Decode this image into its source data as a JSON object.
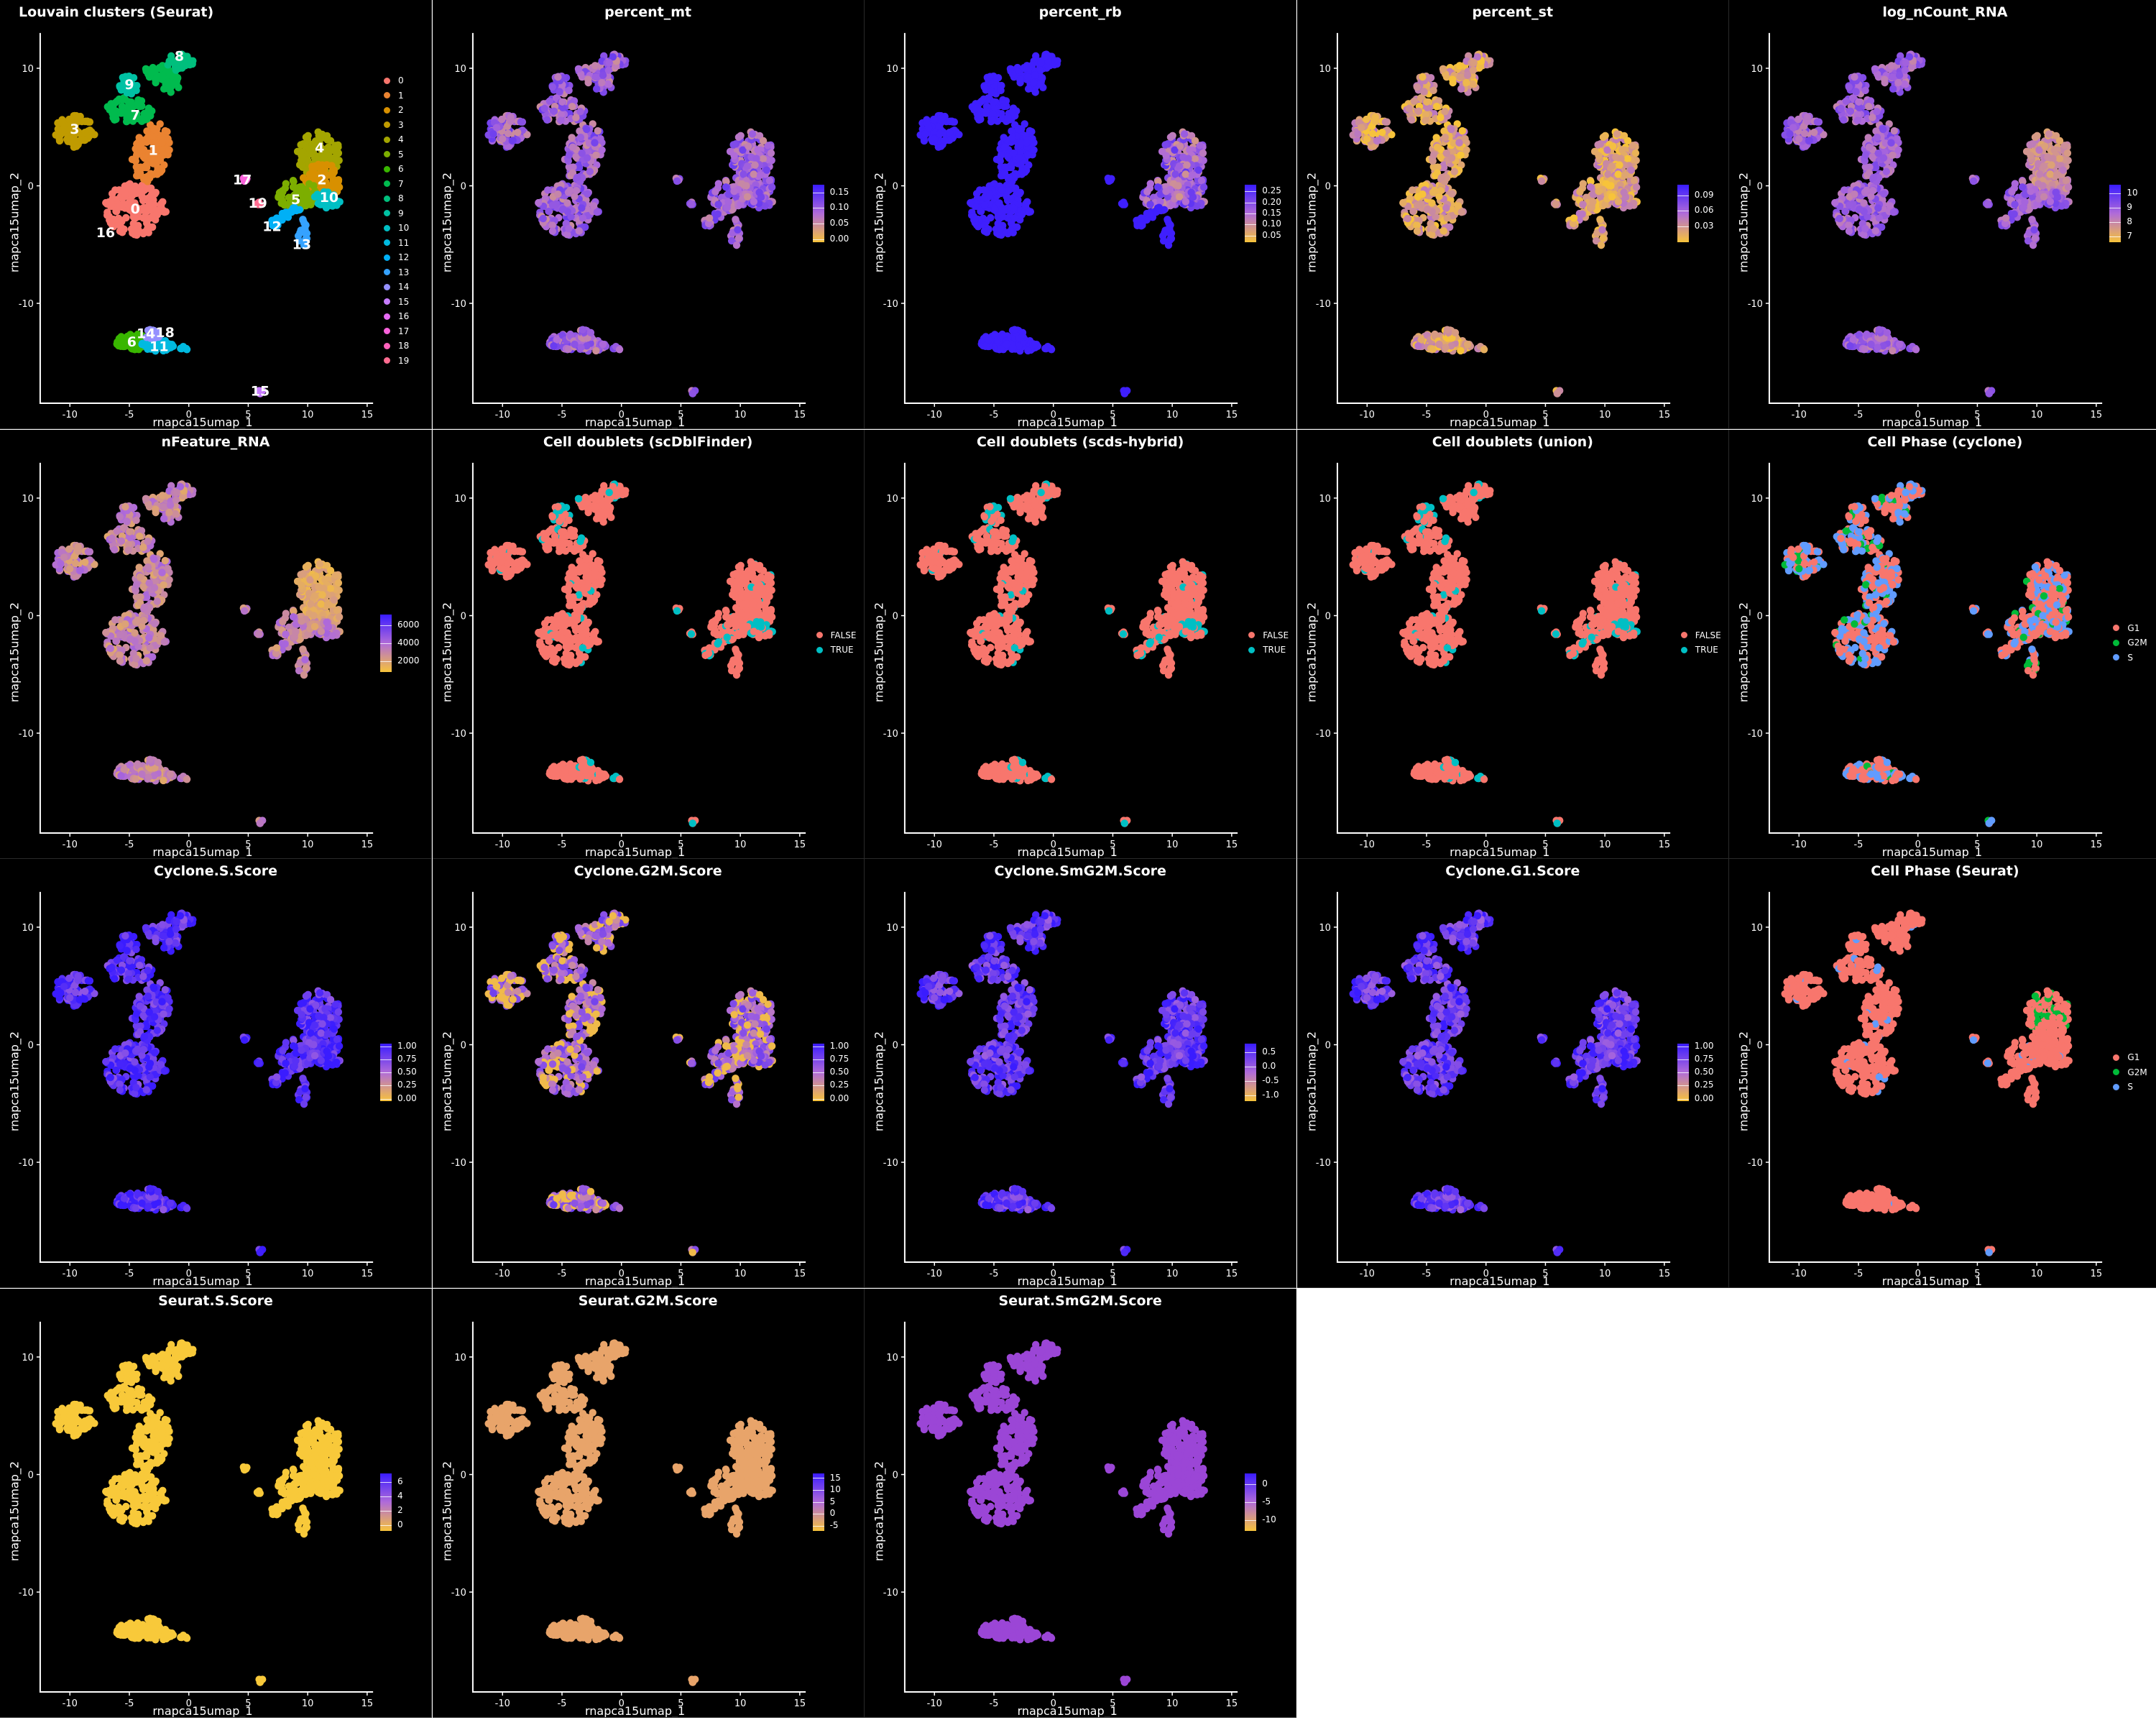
{
  "axes": {
    "xlabel": "rnapca15umap_1",
    "ylabel": "rnapca15umap_2",
    "xlim": [
      -12.5,
      15.5
    ],
    "ylim": [
      -18.5,
      13.0
    ],
    "xticks": [
      -10,
      -5,
      0,
      5,
      10,
      15
    ],
    "yticks": [
      10,
      0,
      -10
    ],
    "xtick_labels": [
      "-10",
      "-5",
      "0",
      "5",
      "10",
      "15"
    ],
    "ytick_labels": [
      "10",
      "0",
      "-10"
    ]
  },
  "colors": {
    "low": "#f7c33a",
    "mid": "#b06bd9",
    "high": "#3a1cff",
    "false": "#f8766d",
    "true": "#00bfc4",
    "g1": "#f8766d",
    "g2m": "#00ba38",
    "s": "#619cff"
  },
  "chart_data": [
    {
      "type": "scatter",
      "title": "Louvain clusters (Seurat)",
      "mode": "clusters",
      "legend": [
        "0",
        "1",
        "2",
        "3",
        "4",
        "5",
        "6",
        "7",
        "8",
        "9",
        "10",
        "11",
        "12",
        "13",
        "14",
        "15",
        "16",
        "17",
        "18",
        "19"
      ],
      "legend_colors": [
        "#f8766d",
        "#ea8331",
        "#d89000",
        "#c09b00",
        "#a3a500",
        "#7cae00",
        "#39b600",
        "#00bb4e",
        "#00bf7d",
        "#00c1a3",
        "#00bfc4",
        "#00bae0",
        "#00b0f6",
        "#35a2ff",
        "#9590ff",
        "#c77cff",
        "#e76bf3",
        "#fa62db",
        "#ff62bc",
        "#ff6c91"
      ],
      "labels": [
        {
          "text": "0",
          "x": -4.5,
          "y": -2.0
        },
        {
          "text": "1",
          "x": -3.0,
          "y": 3.0
        },
        {
          "text": "2",
          "x": 11.2,
          "y": 0.5
        },
        {
          "text": "3",
          "x": -9.6,
          "y": 4.8
        },
        {
          "text": "4",
          "x": 11.0,
          "y": 3.2
        },
        {
          "text": "5",
          "x": 9.0,
          "y": -1.2
        },
        {
          "text": "6",
          "x": -4.8,
          "y": -13.3
        },
        {
          "text": "7",
          "x": -4.5,
          "y": 6.0
        },
        {
          "text": "8",
          "x": -0.8,
          "y": 11.0
        },
        {
          "text": "9",
          "x": -5.0,
          "y": 8.6
        },
        {
          "text": "10",
          "x": 11.8,
          "y": -1.0
        },
        {
          "text": "11",
          "x": -2.5,
          "y": -13.7
        },
        {
          "text": "12",
          "x": 7.0,
          "y": -3.5
        },
        {
          "text": "13",
          "x": 9.5,
          "y": -5.0
        },
        {
          "text": "14",
          "x": -3.6,
          "y": -12.6
        },
        {
          "text": "15",
          "x": 6.0,
          "y": -17.5
        },
        {
          "text": "16",
          "x": -7.0,
          "y": -4.0
        },
        {
          "text": "17",
          "x": 4.5,
          "y": 0.5
        },
        {
          "text": "18",
          "x": -2.0,
          "y": -12.5
        },
        {
          "text": "19",
          "x": 5.8,
          "y": -1.5
        }
      ]
    },
    {
      "type": "scatter",
      "title": "percent_mt",
      "mode": "gradient",
      "base": 0.55,
      "cbar_ticks": [
        "0.15",
        "0.10",
        "0.05",
        "0.00"
      ],
      "cbar_values": [
        0.15,
        0.1,
        0.05,
        0.0
      ],
      "cbar_range": [
        -0.01,
        0.175
      ]
    },
    {
      "type": "scatter",
      "title": "percent_rb",
      "mode": "gradient",
      "base": 0.62,
      "special": "rb",
      "cbar_ticks": [
        "0.25",
        "0.20",
        "0.15",
        "0.10",
        "0.05"
      ],
      "cbar_values": [
        0.25,
        0.2,
        0.15,
        0.1,
        0.05
      ],
      "cbar_range": [
        0.02,
        0.28
      ]
    },
    {
      "type": "scatter",
      "title": "percent_st",
      "mode": "gradient",
      "base": 0.2,
      "cbar_ticks": [
        "0.09",
        "0.06",
        "0.03"
      ],
      "cbar_values": [
        0.09,
        0.06,
        0.03
      ],
      "cbar_range": [
        0.0,
        0.11
      ]
    },
    {
      "type": "scatter",
      "title": "log_nCount_RNA",
      "mode": "gradient",
      "base": 0.45,
      "special": "ncount",
      "cbar_ticks": [
        "10",
        "9",
        "8",
        "7"
      ],
      "cbar_values": [
        10,
        9,
        8,
        7
      ],
      "cbar_range": [
        6.6,
        10.6
      ]
    },
    {
      "type": "scatter",
      "title": "nFeature_RNA",
      "mode": "gradient",
      "base": 0.35,
      "special": "nfeature",
      "cbar_ticks": [
        "6000",
        "4000",
        "2000"
      ],
      "cbar_values": [
        6000,
        4000,
        2000
      ],
      "cbar_range": [
        800,
        7200
      ]
    },
    {
      "type": "scatter",
      "title": "Cell doublets (scDblFinder)",
      "mode": "doublet",
      "legend": [
        "FALSE",
        "TRUE"
      ]
    },
    {
      "type": "scatter",
      "title": "Cell doublets (scds-hybrid)",
      "mode": "doublet",
      "legend": [
        "FALSE",
        "TRUE"
      ]
    },
    {
      "type": "scatter",
      "title": "Cell doublets (union)",
      "mode": "doublet",
      "legend": [
        "FALSE",
        "TRUE"
      ]
    },
    {
      "type": "scatter",
      "title": "Cell Phase (cyclone)",
      "mode": "phase_cyclone",
      "legend": [
        "G1",
        "G2M",
        "S"
      ]
    },
    {
      "type": "scatter",
      "title": "Cyclone.S.Score",
      "mode": "gradient",
      "base": 0.88,
      "cbar_ticks": [
        "1.00",
        "0.75",
        "0.50",
        "0.25",
        "0.00"
      ],
      "cbar_values": [
        1.0,
        0.75,
        0.5,
        0.25,
        0.0
      ],
      "cbar_range": [
        -0.05,
        1.05
      ]
    },
    {
      "type": "scatter",
      "title": "Cyclone.G2M.Score",
      "mode": "gradient",
      "base": 0.5,
      "special": "g2m",
      "cbar_ticks": [
        "1.00",
        "0.75",
        "0.50",
        "0.25",
        "0.00"
      ],
      "cbar_values": [
        1.0,
        0.75,
        0.5,
        0.25,
        0.0
      ],
      "cbar_range": [
        -0.05,
        1.05
      ]
    },
    {
      "type": "scatter",
      "title": "Cyclone.SmG2M.Score",
      "mode": "gradient",
      "base": 0.82,
      "cbar_ticks": [
        "0.5",
        "0.0",
        "-0.5",
        "-1.0"
      ],
      "cbar_values": [
        0.5,
        0.0,
        -0.5,
        -1.0
      ],
      "cbar_range": [
        -1.2,
        0.8
      ]
    },
    {
      "type": "scatter",
      "title": "Cyclone.G1.Score",
      "mode": "gradient",
      "base": 0.8,
      "cbar_ticks": [
        "1.00",
        "0.75",
        "0.50",
        "0.25",
        "0.00"
      ],
      "cbar_values": [
        1.0,
        0.75,
        0.5,
        0.25,
        0.0
      ],
      "cbar_range": [
        -0.05,
        1.05
      ]
    },
    {
      "type": "scatter",
      "title": "Cell Phase (Seurat)",
      "mode": "phase_seurat",
      "legend": [
        "G1",
        "G2M",
        "S"
      ]
    },
    {
      "type": "scatter",
      "title": "Seurat.S.Score",
      "mode": "flat",
      "color": "#f8c93a",
      "cbar_ticks": [
        "6",
        "4",
        "2",
        "0"
      ],
      "cbar_values": [
        6,
        4,
        2,
        0
      ],
      "cbar_range": [
        -0.8,
        7.2
      ]
    },
    {
      "type": "scatter",
      "title": "Seurat.G2M.Score",
      "mode": "flat",
      "color": "#e8a46a",
      "cbar_ticks": [
        "15",
        "10",
        "5",
        "0",
        "-5"
      ],
      "cbar_values": [
        15,
        10,
        5,
        0,
        -5
      ],
      "cbar_range": [
        -7,
        17
      ]
    },
    {
      "type": "scatter",
      "title": "Seurat.SmG2M.Score",
      "mode": "flat",
      "color": "#9b46d6",
      "cbar_ticks": [
        "0",
        "-5",
        "-10"
      ],
      "cbar_values": [
        0,
        -5,
        -10
      ],
      "cbar_range": [
        -13,
        3
      ]
    }
  ]
}
